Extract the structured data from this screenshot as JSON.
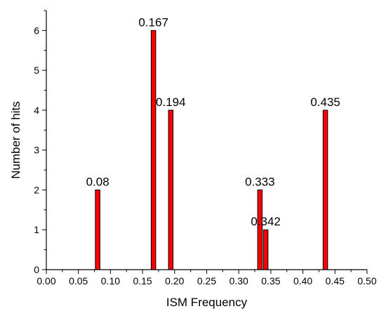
{
  "chart_data": {
    "type": "bar",
    "title": "",
    "xlabel": "ISM Frequency",
    "ylabel": "Number of hits",
    "xlim": [
      0.0,
      0.5
    ],
    "ylim": [
      0,
      6.5
    ],
    "x_ticks": [
      "0.00",
      "0.05",
      "0.10",
      "0.15",
      "0.20",
      "0.25",
      "0.30",
      "0.35",
      "0.40",
      "0.45",
      "0.50"
    ],
    "y_ticks": [
      "0",
      "1",
      "2",
      "3",
      "4",
      "5",
      "6"
    ],
    "grid": false,
    "legend": "none",
    "bar_color": "#ff0000",
    "points": [
      {
        "x": 0.08,
        "value": 2,
        "label": "0.08"
      },
      {
        "x": 0.167,
        "value": 6,
        "label": "0.167"
      },
      {
        "x": 0.194,
        "value": 4,
        "label": "0.194"
      },
      {
        "x": 0.333,
        "value": 2,
        "label": "0.333"
      },
      {
        "x": 0.342,
        "value": 1,
        "label": "0.342"
      },
      {
        "x": 0.435,
        "value": 4,
        "label": "0.435"
      }
    ]
  }
}
